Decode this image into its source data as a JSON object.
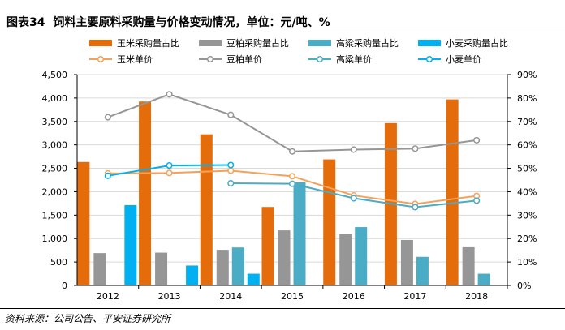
{
  "header": {
    "figure_label": "图表34",
    "title": "饲料主要原料采购量与价格变动情况，单位：元/吨、%"
  },
  "footer": {
    "source": "资料来源：公司公告、平安证券研究所"
  },
  "colors": {
    "corn": "#e46c0a",
    "soy": "#969696",
    "sorghum": "#4bacc6",
    "wheat": "#00b0f0",
    "grid": "#d9d9d9"
  },
  "chart_data": {
    "type": "bar+line",
    "categories": [
      "2012",
      "2013",
      "2014",
      "2015",
      "2016",
      "2017",
      "2018"
    ],
    "left_axis": {
      "min": 0,
      "max": 4500,
      "step": 500,
      "ticks": [
        "0",
        "500",
        "1,000",
        "1,500",
        "2,000",
        "2,500",
        "3,000",
        "3,500",
        "4,000",
        "4,500"
      ]
    },
    "right_axis": {
      "min": 0,
      "max": 90,
      "step": 10,
      "ticks": [
        "0%",
        "10%",
        "20%",
        "30%",
        "40%",
        "50%",
        "60%",
        "70%",
        "80%",
        "90%"
      ]
    },
    "bar_series": [
      {
        "name": "玉米采购量占比",
        "color": "#e46c0a",
        "axis": "right",
        "values": [
          52.7,
          78.5,
          64.5,
          33.5,
          53.8,
          69.3,
          79.4
        ]
      },
      {
        "name": "豆粕采购量占比",
        "color": "#969696",
        "axis": "right",
        "values": [
          13.8,
          14.0,
          15.2,
          23.5,
          22.0,
          19.4,
          16.3
        ]
      },
      {
        "name": "高粱采购量占比",
        "color": "#4bacc6",
        "axis": "right",
        "values": [
          null,
          null,
          16.2,
          44.0,
          24.9,
          12.2,
          5.0
        ]
      },
      {
        "name": "小麦采购量占比",
        "color": "#00b0f0",
        "axis": "right",
        "values": [
          34.3,
          8.5,
          5.0,
          null,
          null,
          null,
          null
        ]
      }
    ],
    "line_series": [
      {
        "name": "玉米单价",
        "color": "#f4a25a",
        "axis": "left",
        "values": [
          2390,
          2400,
          2450,
          2330,
          1920,
          1740,
          1910
        ]
      },
      {
        "name": "豆粕单价",
        "color": "#969696",
        "axis": "left",
        "values": [
          3590,
          4080,
          3640,
          2860,
          2900,
          2920,
          3100
        ]
      },
      {
        "name": "高粱单价",
        "color": "#4bacc6",
        "axis": "left",
        "values": [
          null,
          null,
          2180,
          2170,
          1860,
          1670,
          1810
        ]
      },
      {
        "name": "小麦单价",
        "color": "#00b0f0",
        "axis": "left",
        "values": [
          2340,
          2560,
          2570,
          null,
          null,
          null,
          null
        ]
      }
    ]
  }
}
